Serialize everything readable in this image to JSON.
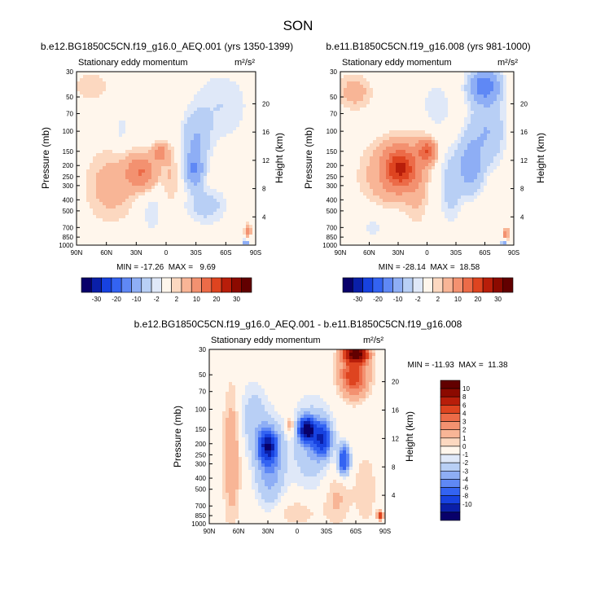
{
  "figure": {
    "title": "SON"
  },
  "chart_data": [
    {
      "type": "heatmap",
      "title": "b.e12.BG1850C5CN.f19_g16.0_AEQ.001 (yrs 1350-1399)",
      "subtitle_left": "Stationary eddy momentum",
      "units": "m²/s²",
      "ylabel": "Pressure (mb)",
      "ylabel_right": "Height (km)",
      "x_ticks": [
        "90N",
        "60N",
        "30N",
        "0",
        "30S",
        "60S",
        "90S"
      ],
      "y_ticks": [
        30,
        50,
        70,
        100,
        150,
        200,
        250,
        300,
        400,
        500,
        700,
        850,
        1000
      ],
      "height_ticks": [
        4,
        8,
        12,
        16,
        20
      ],
      "ylim": [
        1000,
        30
      ],
      "stats": "MIN = -17.26  MAX =   9.69",
      "blobs": [
        {
          "lat": 25,
          "p": 230,
          "v": 10,
          "sx": 10,
          "sy": 0.22
        },
        {
          "lat": 6,
          "p": 155,
          "v": 8,
          "sx": 5,
          "sy": 0.12
        },
        {
          "lat": 55,
          "p": 300,
          "v": 3,
          "sx": 18,
          "sy": 0.5
        },
        {
          "lat": 75,
          "p": 40,
          "v": 2,
          "sx": 12,
          "sy": 0.2
        },
        {
          "lat": -5,
          "p": 250,
          "v": 2,
          "sx": 6,
          "sy": 0.5
        },
        {
          "lat": -28,
          "p": 220,
          "v": -10,
          "sx": 6,
          "sy": 0.22
        },
        {
          "lat": -30,
          "p": 120,
          "v": -5,
          "sx": 9,
          "sy": 0.35
        },
        {
          "lat": -40,
          "p": 450,
          "v": -3,
          "sx": 14,
          "sy": 0.25
        },
        {
          "lat": -55,
          "p": 60,
          "v": -2,
          "sx": 20,
          "sy": 0.5
        },
        {
          "lat": 45,
          "p": 100,
          "v": -1.5,
          "sx": 5,
          "sy": 0.3
        },
        {
          "lat": 15,
          "p": 500,
          "v": -1.5,
          "sx": 10,
          "sy": 0.4
        },
        {
          "lat": -82,
          "p": 750,
          "v": 8,
          "sx": 2,
          "sy": 0.08
        },
        {
          "lat": -80,
          "p": 950,
          "v": -8,
          "sx": 2,
          "sy": 0.04
        }
      ]
    },
    {
      "type": "heatmap",
      "title": "b.e11.B1850C5CN.f19_g16.008 (yrs 981-1000)",
      "subtitle_left": "Stationary eddy momentum",
      "units": "m²/s²",
      "ylabel": "Pressure (mb)",
      "ylabel_right": "Height (km)",
      "x_ticks": [
        "90N",
        "60N",
        "30N",
        "0",
        "30S",
        "60S",
        "90S"
      ],
      "y_ticks": [
        30,
        50,
        70,
        100,
        150,
        200,
        250,
        300,
        400,
        500,
        700,
        850,
        1000
      ],
      "height_ticks": [
        4,
        8,
        12,
        16,
        20
      ],
      "ylim": [
        1000,
        30
      ],
      "stats": "MIN = -28.14  MAX =  18.58",
      "blobs": [
        {
          "lat": 28,
          "p": 210,
          "v": 20,
          "sx": 11,
          "sy": 0.28
        },
        {
          "lat": 0,
          "p": 150,
          "v": 14,
          "sx": 6,
          "sy": 0.15
        },
        {
          "lat": 45,
          "p": 250,
          "v": 3,
          "sx": 18,
          "sy": 0.5
        },
        {
          "lat": 75,
          "p": 45,
          "v": 3,
          "sx": 12,
          "sy": 0.25
        },
        {
          "lat": 10,
          "p": 250,
          "v": 3,
          "sx": 8,
          "sy": 0.6
        },
        {
          "lat": -45,
          "p": 200,
          "v": -8,
          "sx": 8,
          "sy": 0.35
        },
        {
          "lat": -60,
          "p": 40,
          "v": -14,
          "sx": 10,
          "sy": 0.22
        },
        {
          "lat": -62,
          "p": 100,
          "v": -5,
          "sx": 12,
          "sy": 0.45
        },
        {
          "lat": -25,
          "p": 300,
          "v": -3,
          "sx": 8,
          "sy": 0.5
        },
        {
          "lat": -10,
          "p": 60,
          "v": -2,
          "sx": 10,
          "sy": 0.3
        },
        {
          "lat": 55,
          "p": 650,
          "v": -1.5,
          "sx": 12,
          "sy": 0.3
        },
        {
          "lat": -82,
          "p": 800,
          "v": 8,
          "sx": 2,
          "sy": 0.08
        },
        {
          "lat": -80,
          "p": 950,
          "v": -8,
          "sx": 2,
          "sy": 0.04
        }
      ]
    },
    {
      "type": "heatmap",
      "title": "b.e12.BG1850C5CN.f19_g16.0_AEQ.001 - b.e11.B1850C5CN.f19_g16.008",
      "subtitle_left": "Stationary eddy momentum",
      "units": "m²/s²",
      "ylabel": "Pressure (mb)",
      "ylabel_right": "Height (km)",
      "x_ticks": [
        "90N",
        "60N",
        "30N",
        "0",
        "30S",
        "60S",
        "90S"
      ],
      "y_ticks": [
        30,
        50,
        70,
        100,
        150,
        200,
        250,
        300,
        400,
        500,
        700,
        850,
        1000
      ],
      "height_ticks": [
        4,
        8,
        12,
        16,
        20
      ],
      "ylim": [
        1000,
        30
      ],
      "stats": "MIN = -11.93  MAX =  11.38",
      "blobs": [
        {
          "lat": 30,
          "p": 210,
          "v": -8,
          "sx": 6,
          "sy": 0.2
        },
        {
          "lat": 28,
          "p": 300,
          "v": -3,
          "sx": 10,
          "sy": 0.55
        },
        {
          "lat": -10,
          "p": 150,
          "v": -12,
          "sx": 5,
          "sy": 0.15
        },
        {
          "lat": -25,
          "p": 180,
          "v": -7,
          "sx": 6,
          "sy": 0.22
        },
        {
          "lat": -48,
          "p": 280,
          "v": -6,
          "sx": 4,
          "sy": 0.2
        },
        {
          "lat": -15,
          "p": 200,
          "v": -2,
          "sx": 15,
          "sy": 0.6
        },
        {
          "lat": 45,
          "p": 120,
          "v": -1.5,
          "sx": 10,
          "sy": 0.5
        },
        {
          "lat": 7,
          "p": 140,
          "v": 2,
          "sx": 3,
          "sy": 0.15
        },
        {
          "lat": 67,
          "p": 250,
          "v": 2,
          "sx": 6,
          "sy": 0.9
        },
        {
          "lat": -60,
          "p": 33,
          "v": 11,
          "sx": 8,
          "sy": 0.1
        },
        {
          "lat": -58,
          "p": 50,
          "v": 5,
          "sx": 10,
          "sy": 0.3
        },
        {
          "lat": -40,
          "p": 600,
          "v": 1.2,
          "sx": 10,
          "sy": 0.4
        },
        {
          "lat": -70,
          "p": 500,
          "v": 1,
          "sx": 8,
          "sy": 0.5
        },
        {
          "lat": 0,
          "p": 800,
          "v": 1,
          "sx": 15,
          "sy": 0.2
        },
        {
          "lat": -85,
          "p": 850,
          "v": 5,
          "sx": 2,
          "sy": 0.06
        }
      ]
    }
  ],
  "colorbar_top": {
    "labels": [
      "-30",
      "-20",
      "-10",
      "-2",
      "2",
      "10",
      "20",
      "30"
    ],
    "levels": [
      -30,
      -25,
      -20,
      -15,
      -10,
      -5,
      -2,
      -1,
      1,
      2,
      5,
      10,
      15,
      20,
      25,
      30
    ]
  },
  "colorbar_right": {
    "labels": [
      "10",
      "8",
      "6",
      "4",
      "3",
      "2",
      "1",
      "0",
      "-1",
      "-2",
      "-3",
      "-4",
      "-6",
      "-8",
      "-10"
    ],
    "levels": [
      -10,
      -8,
      -6,
      -4,
      -3,
      -2,
      -1,
      -0.5,
      0.5,
      1,
      2,
      3,
      4,
      6,
      8,
      10
    ]
  },
  "palette": [
    "#08006a",
    "#0a1fa8",
    "#1742e0",
    "#3363f2",
    "#5f88f5",
    "#8eaef5",
    "#b8cff5",
    "#dfe8f8",
    "#fff6ec",
    "#fcd8c0",
    "#f8b596",
    "#f39170",
    "#ec6b48",
    "#de4420",
    "#b81e0a",
    "#8c0a00",
    "#620000"
  ]
}
